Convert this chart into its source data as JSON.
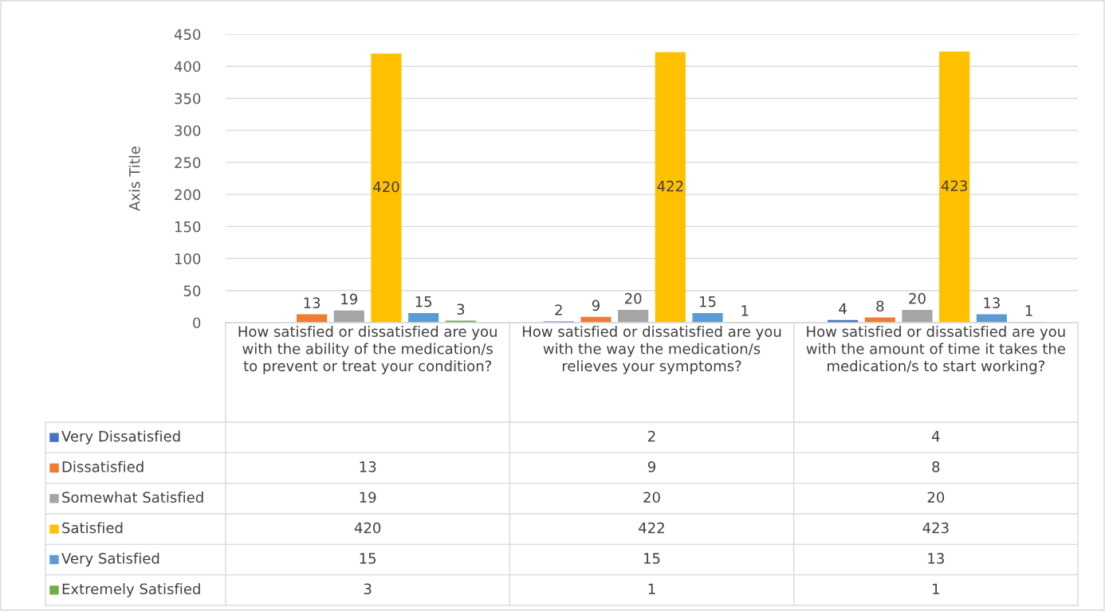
{
  "chart_data": {
    "type": "bar",
    "ylabel": "Axis Title",
    "categories": [
      "How satisfied or dissatisfied are you with the ability of the medication/s to prevent or treat your condition?",
      "How satisfied or dissatisfied are you with the way the medication/s relieves your symptoms?",
      "How satisfied or dissatisfied are you with the amount of time it takes the medication/s to start working?"
    ],
    "series": [
      {
        "name": "Very Dissatisfied",
        "color": "#4472c4",
        "values": [
          null,
          2,
          4
        ]
      },
      {
        "name": "Dissatisfied",
        "color": "#ed7d31",
        "values": [
          13,
          9,
          8
        ]
      },
      {
        "name": "Somewhat Satisfied",
        "color": "#a5a5a5",
        "values": [
          19,
          20,
          20
        ]
      },
      {
        "name": "Satisfied",
        "color": "#ffc000",
        "values": [
          420,
          422,
          423
        ]
      },
      {
        "name": "Very Satisfied",
        "color": "#5b9bd5",
        "values": [
          15,
          15,
          13
        ]
      },
      {
        "name": "Extremely Satisfied",
        "color": "#70ad47",
        "values": [
          3,
          1,
          1
        ]
      }
    ],
    "annotations": [
      "13",
      "19",
      "420",
      "15",
      "3",
      "2",
      "9",
      "20",
      "422",
      "15",
      "1",
      "4",
      "8",
      "20",
      "423",
      "13",
      "1"
    ],
    "ylim": [
      0,
      450
    ],
    "yticks": [
      0,
      50,
      100,
      150,
      200,
      250,
      300,
      350,
      400,
      450
    ],
    "grid": "y",
    "data_labels": true,
    "legend": "bottom"
  }
}
